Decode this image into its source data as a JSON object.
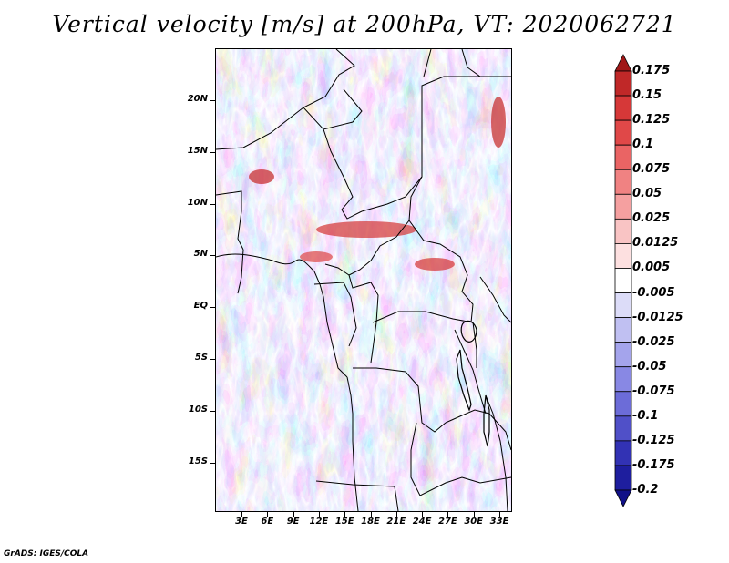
{
  "title": "Vertical velocity [m/s] at 200hPa, VT: 2020062721",
  "credit": "GrADS: IGES/COLA",
  "lat_labels": [
    "20N",
    "15N",
    "10N",
    "5N",
    "EQ",
    "5S",
    "10S",
    "15S"
  ],
  "lon_labels": [
    "3E",
    "6E",
    "9E",
    "12E",
    "15E",
    "18E",
    "21E",
    "24E",
    "27E",
    "30E",
    "33E"
  ],
  "colorbar": {
    "levels": [
      "0.175",
      "0.15",
      "0.125",
      "0.1",
      "0.075",
      "0.05",
      "0.025",
      "0.0125",
      "0.005",
      "-0.005",
      "-0.0125",
      "-0.025",
      "-0.05",
      "-0.075",
      "-0.1",
      "-0.125",
      "-0.175",
      "-0.2"
    ],
    "colors": [
      "#a01818",
      "#c02828",
      "#d63838",
      "#e04848",
      "#ea6464",
      "#f08282",
      "#f5a0a0",
      "#f9c4c4",
      "#fde0e0",
      "#ffffff",
      "#dcdcf8",
      "#c0c0f2",
      "#a4a4ec",
      "#8888e4",
      "#6c6cd8",
      "#5050c8",
      "#3232b4",
      "#1e1e9e",
      "#101088"
    ]
  }
}
